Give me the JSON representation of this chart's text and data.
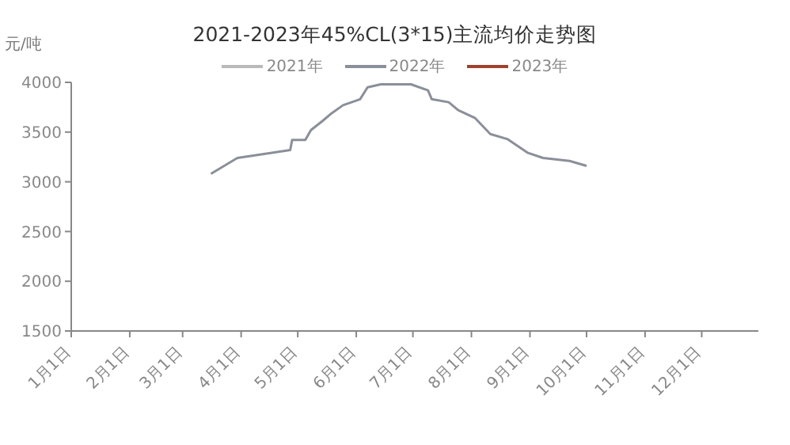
{
  "chart_data": {
    "type": "line",
    "title": "2021-2023年45%CL(3*15)主流均价走势图",
    "ylabel": "元/吨",
    "legend": "top",
    "x": [
      "--03-16",
      "--03-30",
      "--04-27",
      "--04-28",
      "--05-05",
      "--05-08",
      "--05-14",
      "--05-19",
      "--05-25",
      "--06-03",
      "--06-07",
      "--06-14",
      "--06-30",
      "--07-09",
      "--07-11",
      "--07-20",
      "--07-25",
      "--08-03",
      "--08-11",
      "--08-20",
      "--08-31",
      "--09-08",
      "--09-22",
      "--10-01"
    ],
    "series": [
      {
        "name": "2021年",
        "color": "#b9b9b9",
        "values": [
          null,
          null,
          null,
          null,
          null,
          null,
          null,
          null,
          null,
          null,
          null,
          null,
          null,
          null,
          null,
          null,
          null,
          null,
          null,
          null,
          null,
          null,
          null,
          null
        ]
      },
      {
        "name": "2022年",
        "color": "#8a8f99",
        "values": [
          3080,
          3240,
          3320,
          3420,
          3420,
          3520,
          3610,
          3690,
          3770,
          3830,
          3950,
          3980,
          3980,
          3920,
          3830,
          3800,
          3720,
          3640,
          3480,
          3430,
          3290,
          3240,
          3210,
          3160
        ]
      },
      {
        "name": "2023年",
        "color": "#a0412d",
        "values": [
          null,
          null,
          null,
          null,
          null,
          null,
          null,
          null,
          null,
          null,
          null,
          null,
          null,
          null,
          null,
          null,
          null,
          null,
          null,
          null,
          null,
          null,
          null,
          null
        ]
      }
    ],
    "xlim": [
      "--01-01",
      "--12-31"
    ],
    "xticks": [
      {
        "value": "--01-01",
        "label": "1月1日"
      },
      {
        "value": "--02-01",
        "label": "2月1日"
      },
      {
        "value": "--03-01",
        "label": "3月1日"
      },
      {
        "value": "--04-01",
        "label": "4月1日"
      },
      {
        "value": "--05-01",
        "label": "5月1日"
      },
      {
        "value": "--06-01",
        "label": "6月1日"
      },
      {
        "value": "--07-01",
        "label": "7月1日"
      },
      {
        "value": "--08-01",
        "label": "8月1日"
      },
      {
        "value": "--09-01",
        "label": "9月1日"
      },
      {
        "value": "--10-01",
        "label": "10月1日"
      },
      {
        "value": "--11-01",
        "label": "11月1日"
      },
      {
        "value": "--12-01",
        "label": "12月1日"
      }
    ],
    "ylim": [
      1500,
      4000
    ],
    "yticks": [
      1500,
      2000,
      2500,
      3000,
      3500,
      4000
    ]
  }
}
